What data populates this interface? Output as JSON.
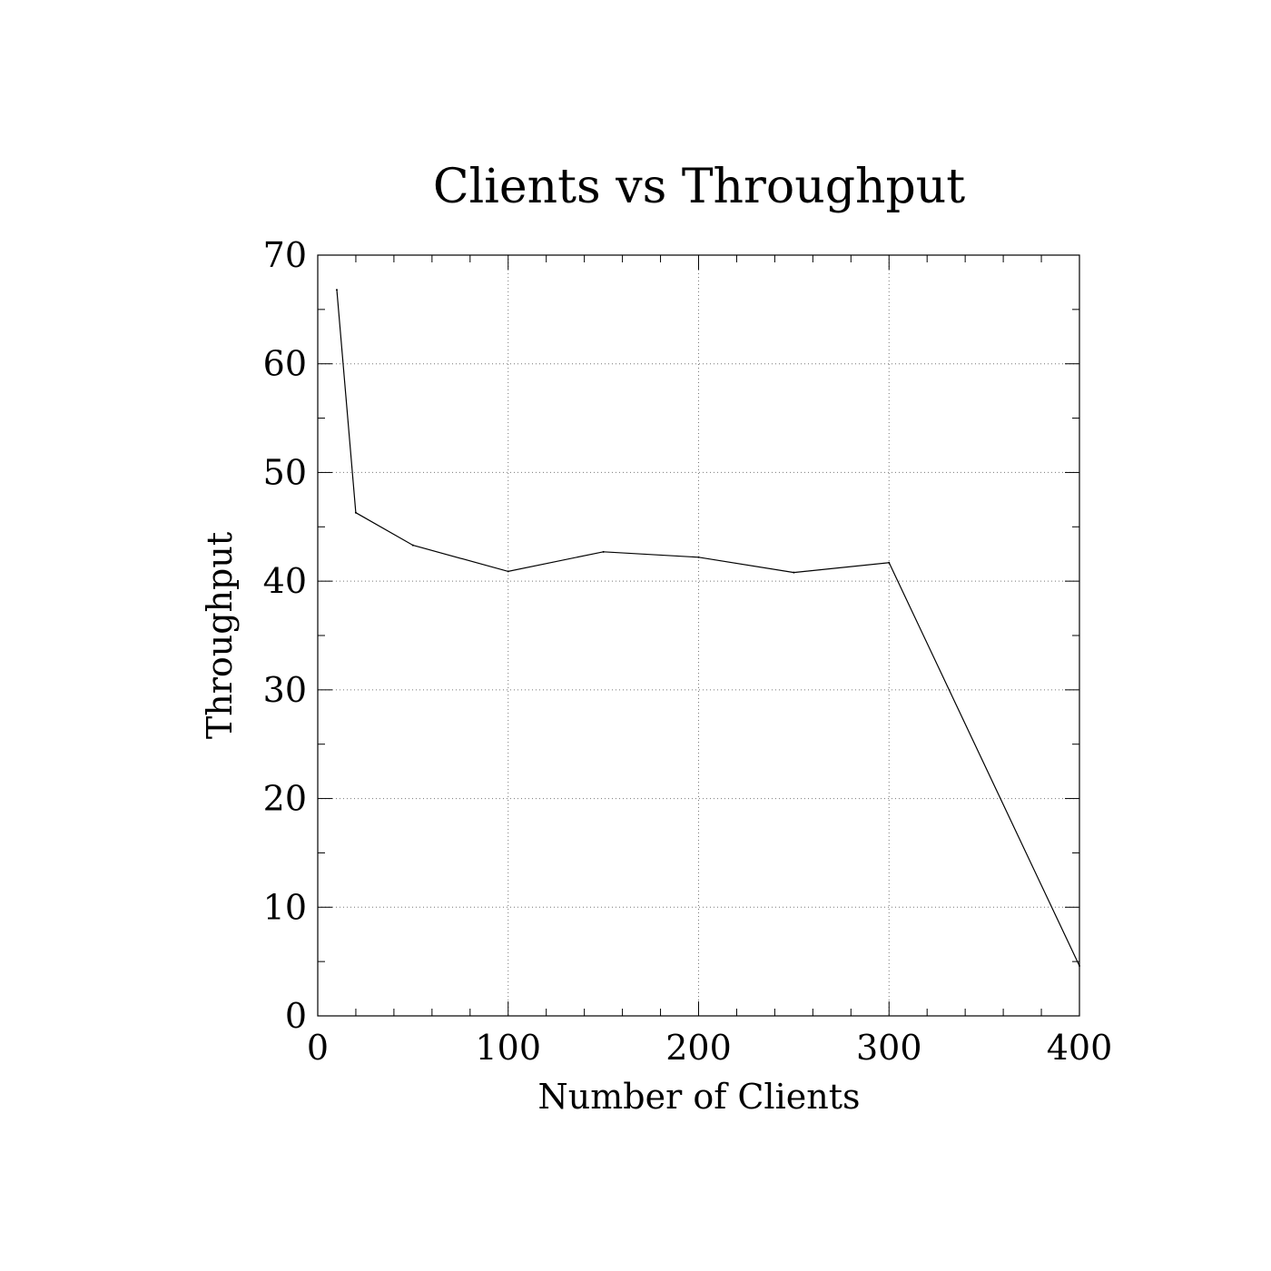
{
  "chart_data": {
    "type": "line",
    "title": "Clients vs Throughput",
    "xlabel": "Number of Clients",
    "ylabel": "Throughput",
    "xlim": [
      0,
      400
    ],
    "ylim": [
      0,
      70
    ],
    "x_ticks": [
      0,
      100,
      200,
      300,
      400
    ],
    "y_ticks": [
      0,
      10,
      20,
      30,
      40,
      50,
      60,
      70
    ],
    "x_minor_step": 20,
    "y_minor_step": 5,
    "grid": true,
    "line_color": "#000000",
    "series": [
      {
        "x": [
          10,
          20,
          50,
          100,
          150,
          200,
          250,
          300,
          400
        ],
        "y": [
          66.8,
          46.3,
          43.3,
          40.9,
          42.7,
          42.2,
          40.8,
          41.7,
          4.6
        ]
      }
    ]
  }
}
